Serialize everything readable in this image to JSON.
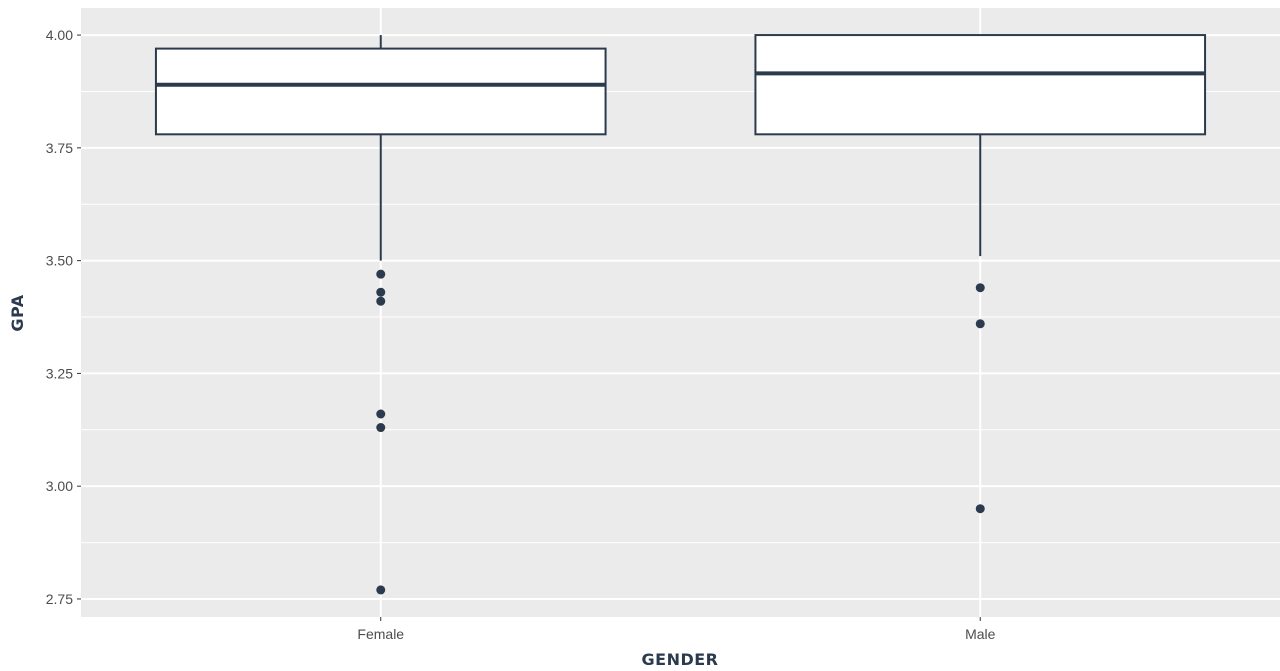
{
  "chart_data": {
    "type": "boxplot",
    "xlabel": "GENDER",
    "ylabel": "GPA",
    "categories": [
      "Female",
      "Male"
    ],
    "ylim": [
      2.71,
      4.06
    ],
    "y_ticks": [
      2.75,
      3.0,
      3.25,
      3.5,
      3.75,
      4.0
    ],
    "y_tick_labels": [
      "2.75",
      "3.00",
      "3.25",
      "3.50",
      "3.75",
      "4.00"
    ],
    "boxes": [
      {
        "category": "Female",
        "whisker_low": 3.5,
        "q1": 3.78,
        "median": 3.89,
        "q3": 3.97,
        "whisker_high": 4.0,
        "outliers": [
          3.47,
          3.43,
          3.41,
          3.16,
          3.13,
          2.77
        ]
      },
      {
        "category": "Male",
        "whisker_low": 3.51,
        "q1": 3.78,
        "median": 3.915,
        "q3": 4.0,
        "whisker_high": 4.0,
        "outliers": [
          3.44,
          3.36,
          2.95
        ]
      }
    ],
    "grid": true,
    "colors": {
      "panel": "#ebebeb",
      "grid": "#ffffff",
      "box_stroke": "#2b3a4d",
      "box_fill": "#ffffff",
      "outlier": "#2b3a4d"
    }
  }
}
